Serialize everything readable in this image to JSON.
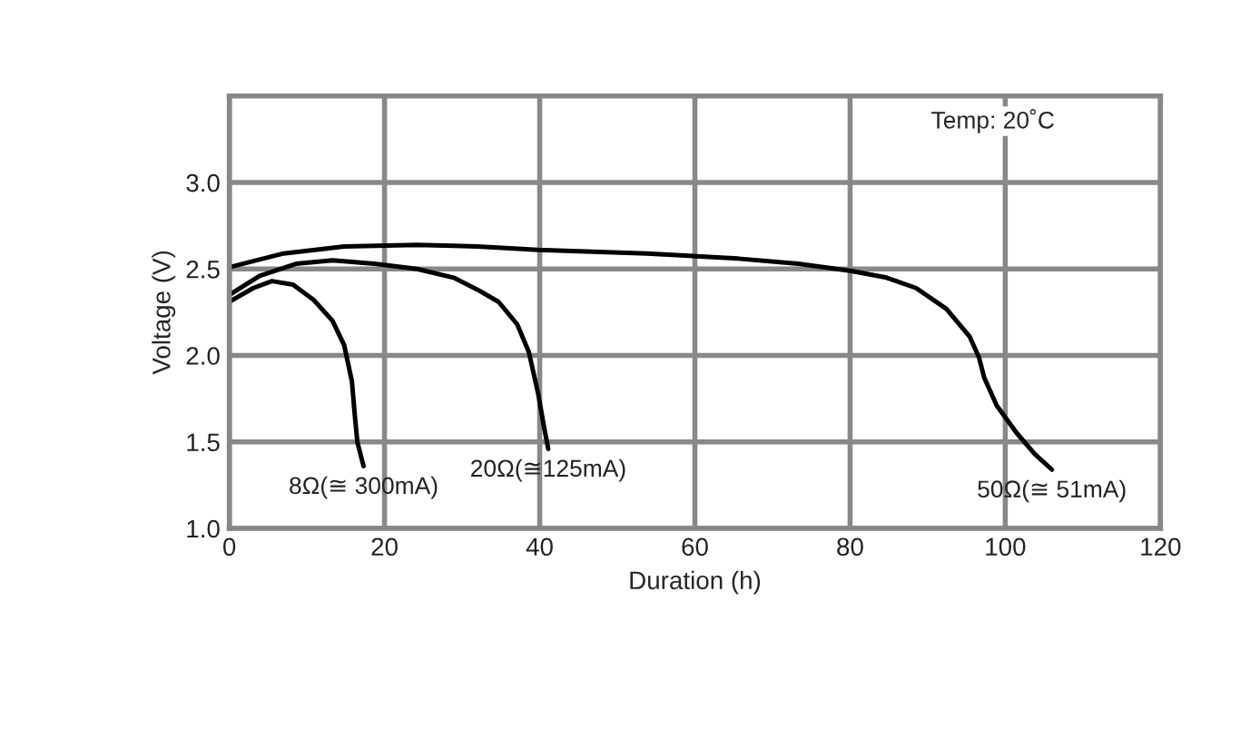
{
  "chart_data": {
    "type": "line",
    "xlabel": "Duration (h)",
    "ylabel": "Voltage (V)",
    "xlim": [
      0,
      120
    ],
    "xticks": [
      0,
      20,
      40,
      60,
      80,
      100,
      120
    ],
    "ylim": [
      1.0,
      3.5
    ],
    "yticks": [
      {
        "value": 1.0,
        "label": "1.0"
      },
      {
        "value": 1.5,
        "label": "1.5"
      },
      {
        "value": 2.0,
        "label": "2.0"
      },
      {
        "value": 2.5,
        "label": "2.5"
      },
      {
        "value": 3.0,
        "label": "3.0"
      }
    ],
    "grid": true,
    "legend": false,
    "marker": "none",
    "line_style": "solid",
    "annotations": [
      "Temp: 20˚C"
    ],
    "series": [
      {
        "name": "8Ω(≅ 300mA)",
        "color": "#000000",
        "x": [
          0,
          3.1,
          5.5,
          8.2,
          10.9,
          13.3,
          14.8,
          15.8,
          16.2,
          16.5,
          17.3
        ],
        "values": [
          2.31,
          2.39,
          2.43,
          2.41,
          2.32,
          2.2,
          2.06,
          1.85,
          1.64,
          1.5,
          1.36
        ]
      },
      {
        "name": "20Ω(≅125mA)",
        "color": "#000000",
        "x": [
          0,
          3.9,
          8.6,
          13.3,
          18.7,
          24.2,
          28.9,
          32,
          34.7,
          37.1,
          38.6,
          39.8,
          40.5,
          41.1
        ],
        "values": [
          2.35,
          2.46,
          2.53,
          2.55,
          2.53,
          2.5,
          2.45,
          2.38,
          2.31,
          2.18,
          2.02,
          1.78,
          1.6,
          1.46
        ]
      },
      {
        "name": "50Ω(≅ 51mA)",
        "color": "#000000",
        "x": [
          0,
          7,
          14.8,
          24.2,
          32,
          39.8,
          53.8,
          65.6,
          73.3,
          80,
          84.7,
          88.5,
          92.4,
          95.4,
          96.6,
          97.3,
          98.9,
          101.5,
          103.8,
          106
        ],
        "values": [
          2.51,
          2.59,
          2.63,
          2.64,
          2.63,
          2.61,
          2.59,
          2.56,
          2.53,
          2.49,
          2.45,
          2.39,
          2.27,
          2.11,
          1.99,
          1.87,
          1.71,
          1.55,
          1.43,
          1.34
        ]
      }
    ]
  }
}
